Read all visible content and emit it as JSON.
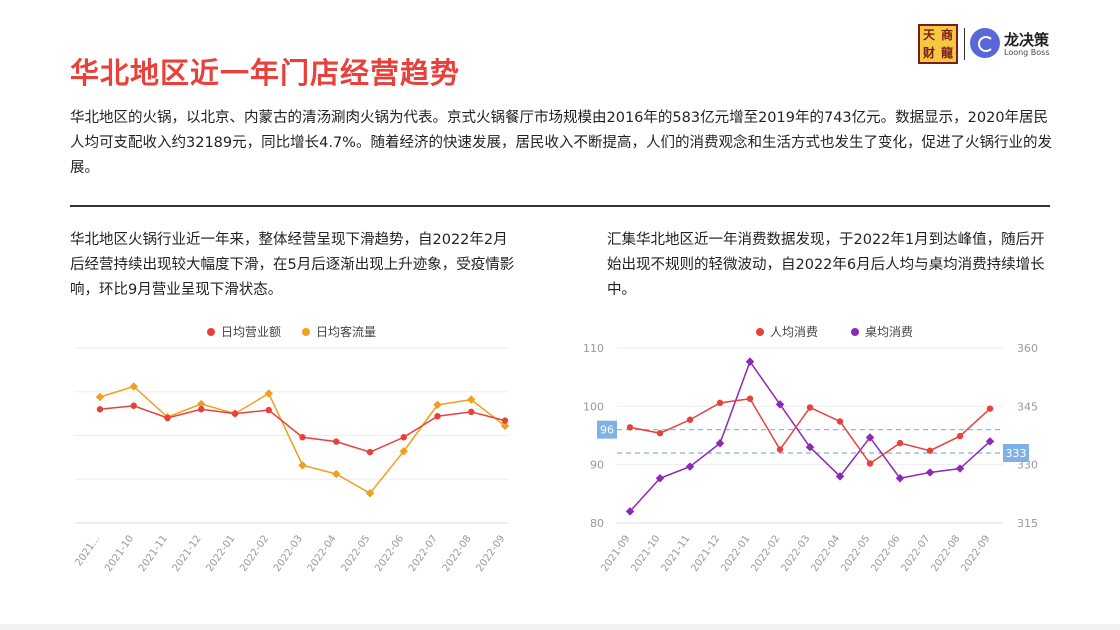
{
  "header": {
    "title": "华北地区近一年门店经营趋势",
    "logo_chars": [
      "天",
      "商",
      "财",
      "龍"
    ],
    "brand_name": "龙决策",
    "brand_en": "Loong Boss"
  },
  "intro": "华北地区的火锅，以北京、内蒙古的清汤涮肉火锅为代表。京式火锅餐厅市场规模由2016年的583亿元增至2019年的743亿元。数据显示，2020年居民人均可支配收入约32189元，同比增长4.7%。随着经济的快速发展，居民收入不断提高，人们的消费观念和生活方式也发生了变化，促进了火锅行业的发展。",
  "left_text": "华北地区火锅行业近一年来，整体经营呈现下滑趋势，自2022年2月后经营持续出现较大幅度下滑，在5月后逐渐出现上升迹象，受疫情影响，环比9月营业呈现下滑状态。",
  "right_text": "汇集华北地区近一年消费数据发现，于2022年1月到达峰值，随后开始出现不规则的轻微波动，自2022年6月后人均与桌均消费持续增长中。",
  "chart_data": [
    {
      "type": "line",
      "categories": [
        "2021...",
        "2021-10",
        "2021-11",
        "2021-12",
        "2022-01",
        "2022-02",
        "2022-03",
        "2022-04",
        "2022-05",
        "2022-06",
        "2022-07",
        "2022-08",
        "2022-09"
      ],
      "series": [
        {
          "name": "日均营业额",
          "color": "#e8413b",
          "values": [
            65,
            67,
            60,
            65,
            62.5,
            64.5,
            49,
            46.5,
            40.5,
            49,
            61,
            63.5,
            58.5
          ]
        },
        {
          "name": "日均客流量",
          "color": "#f0a020",
          "values": [
            72,
            78,
            60.5,
            68,
            62.5,
            74,
            33,
            28,
            17,
            41,
            67.5,
            70.5,
            55.5
          ]
        }
      ],
      "ylim": [
        0,
        100
      ],
      "grid": true,
      "y_tick_labels": false,
      "legend": "top"
    },
    {
      "type": "line",
      "categories": [
        "2021-09",
        "2021-10",
        "2021-11",
        "2021-12",
        "2022-01",
        "2022-02",
        "2022-03",
        "2022-04",
        "2022-05",
        "2022-06",
        "2022-07",
        "2022-08",
        "2022-09"
      ],
      "series": [
        {
          "name": "人均消费",
          "color": "#e8413b",
          "axis": "left",
          "values": [
            96.4,
            95.4,
            97.7,
            100.6,
            101.3,
            92.6,
            99.8,
            97.4,
            90.2,
            93.7,
            92.4,
            94.9,
            99.6
          ]
        },
        {
          "name": "桌均消费",
          "color": "#8e28b8",
          "axis": "right",
          "values": [
            318,
            326.5,
            329.5,
            335.5,
            356.5,
            345.5,
            334.5,
            327,
            337,
            326.5,
            328,
            329,
            336
          ]
        }
      ],
      "y_left": {
        "min": 80,
        "max": 110,
        "ticks": [
          80,
          90,
          100,
          110
        ]
      },
      "y_right": {
        "min": 315,
        "max": 360,
        "ticks": [
          315,
          330,
          345,
          360
        ]
      },
      "reference_lines": [
        {
          "value": 96,
          "axis": "left",
          "label": "96"
        },
        {
          "value": 333,
          "axis": "right",
          "label": "333"
        }
      ],
      "legend": "top"
    }
  ]
}
